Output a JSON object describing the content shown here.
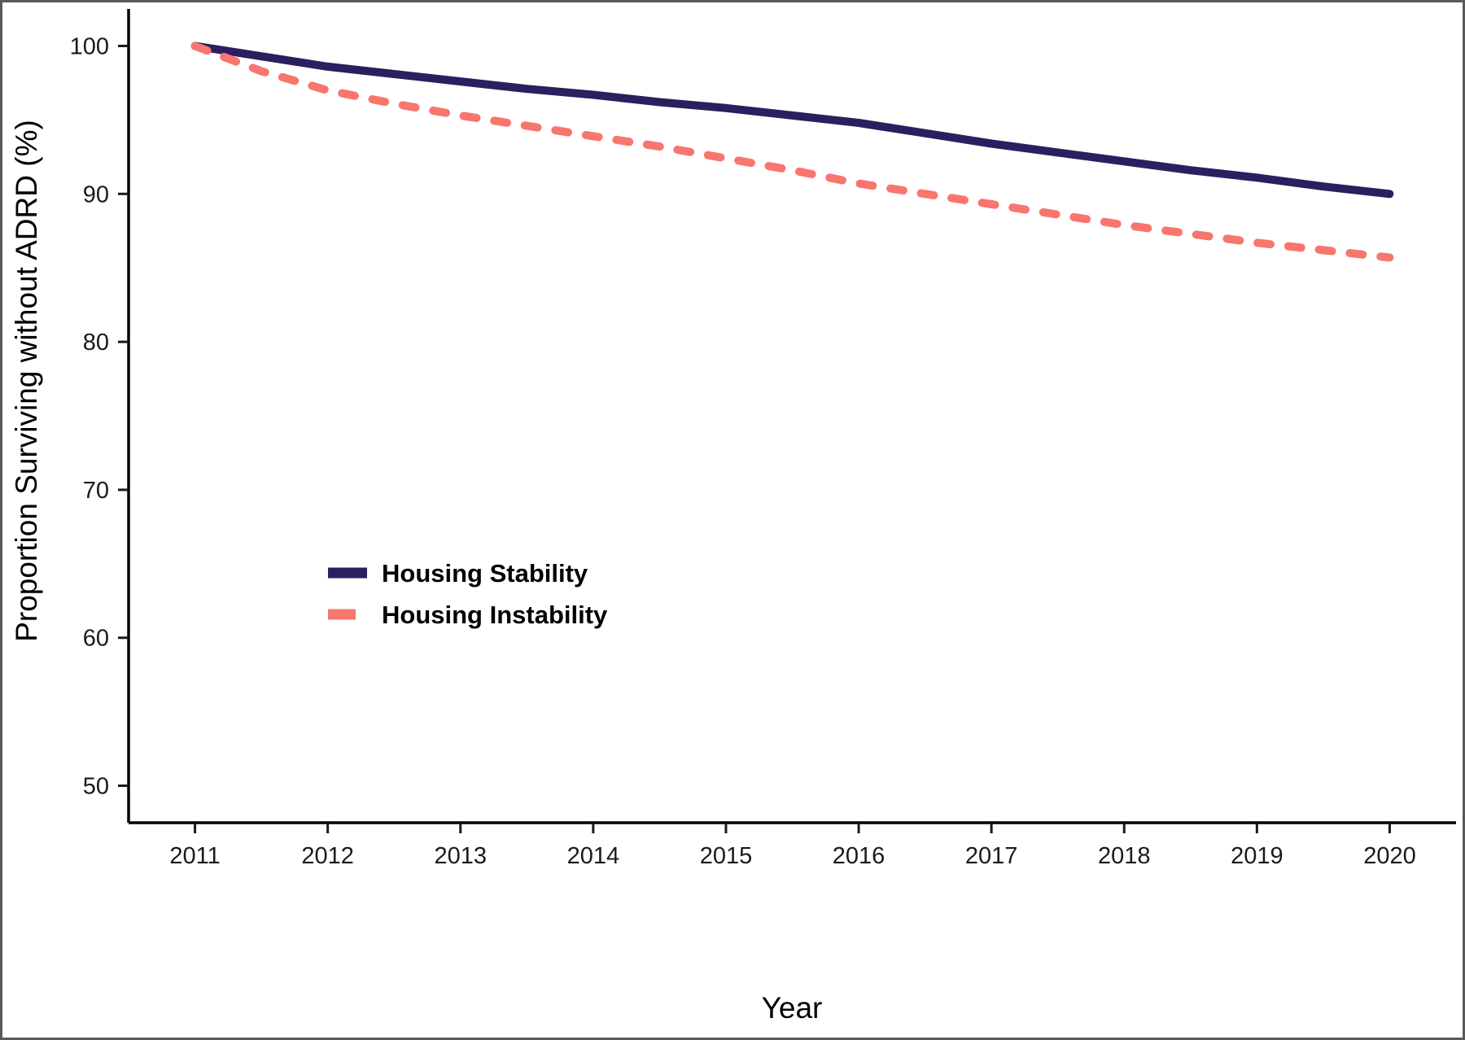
{
  "figure": {
    "background": "#ffffff",
    "border_color": "#5a5a5a"
  },
  "chart_data": {
    "type": "line",
    "title": "",
    "xlabel": "Year",
    "ylabel": "Proportion Surviving without ADRD (%)",
    "xlim": [
      2010.5,
      2020.5
    ],
    "ylim": [
      47.5,
      102.5
    ],
    "xticks": [
      2011,
      2012,
      2013,
      2014,
      2015,
      2016,
      2017,
      2018,
      2019,
      2020
    ],
    "yticks": [
      50,
      60,
      70,
      80,
      90,
      100
    ],
    "grid": "off",
    "legend_position": "inside-left-middle",
    "x": [
      2011,
      2011.5,
      2012,
      2012.5,
      2013,
      2013.5,
      2014,
      2014.5,
      2015,
      2015.5,
      2016,
      2016.5,
      2017,
      2017.5,
      2018,
      2018.5,
      2019,
      2019.5,
      2020
    ],
    "series": [
      {
        "name": "Housing Stability",
        "color": "#2D1E5F",
        "style": "solid",
        "values": [
          100,
          99.3,
          98.6,
          98.1,
          97.6,
          97.1,
          96.7,
          96.2,
          95.8,
          95.3,
          94.8,
          94.1,
          93.4,
          92.8,
          92.2,
          91.6,
          91.1,
          90.5,
          90.0
        ]
      },
      {
        "name": "Housing Instability",
        "color": "#F8766D",
        "style": "dashed",
        "values": [
          100,
          98.3,
          97.0,
          96.1,
          95.3,
          94.6,
          93.9,
          93.2,
          92.4,
          91.6,
          90.7,
          90.0,
          89.3,
          88.6,
          87.9,
          87.3,
          86.7,
          86.2,
          85.7
        ]
      }
    ]
  }
}
